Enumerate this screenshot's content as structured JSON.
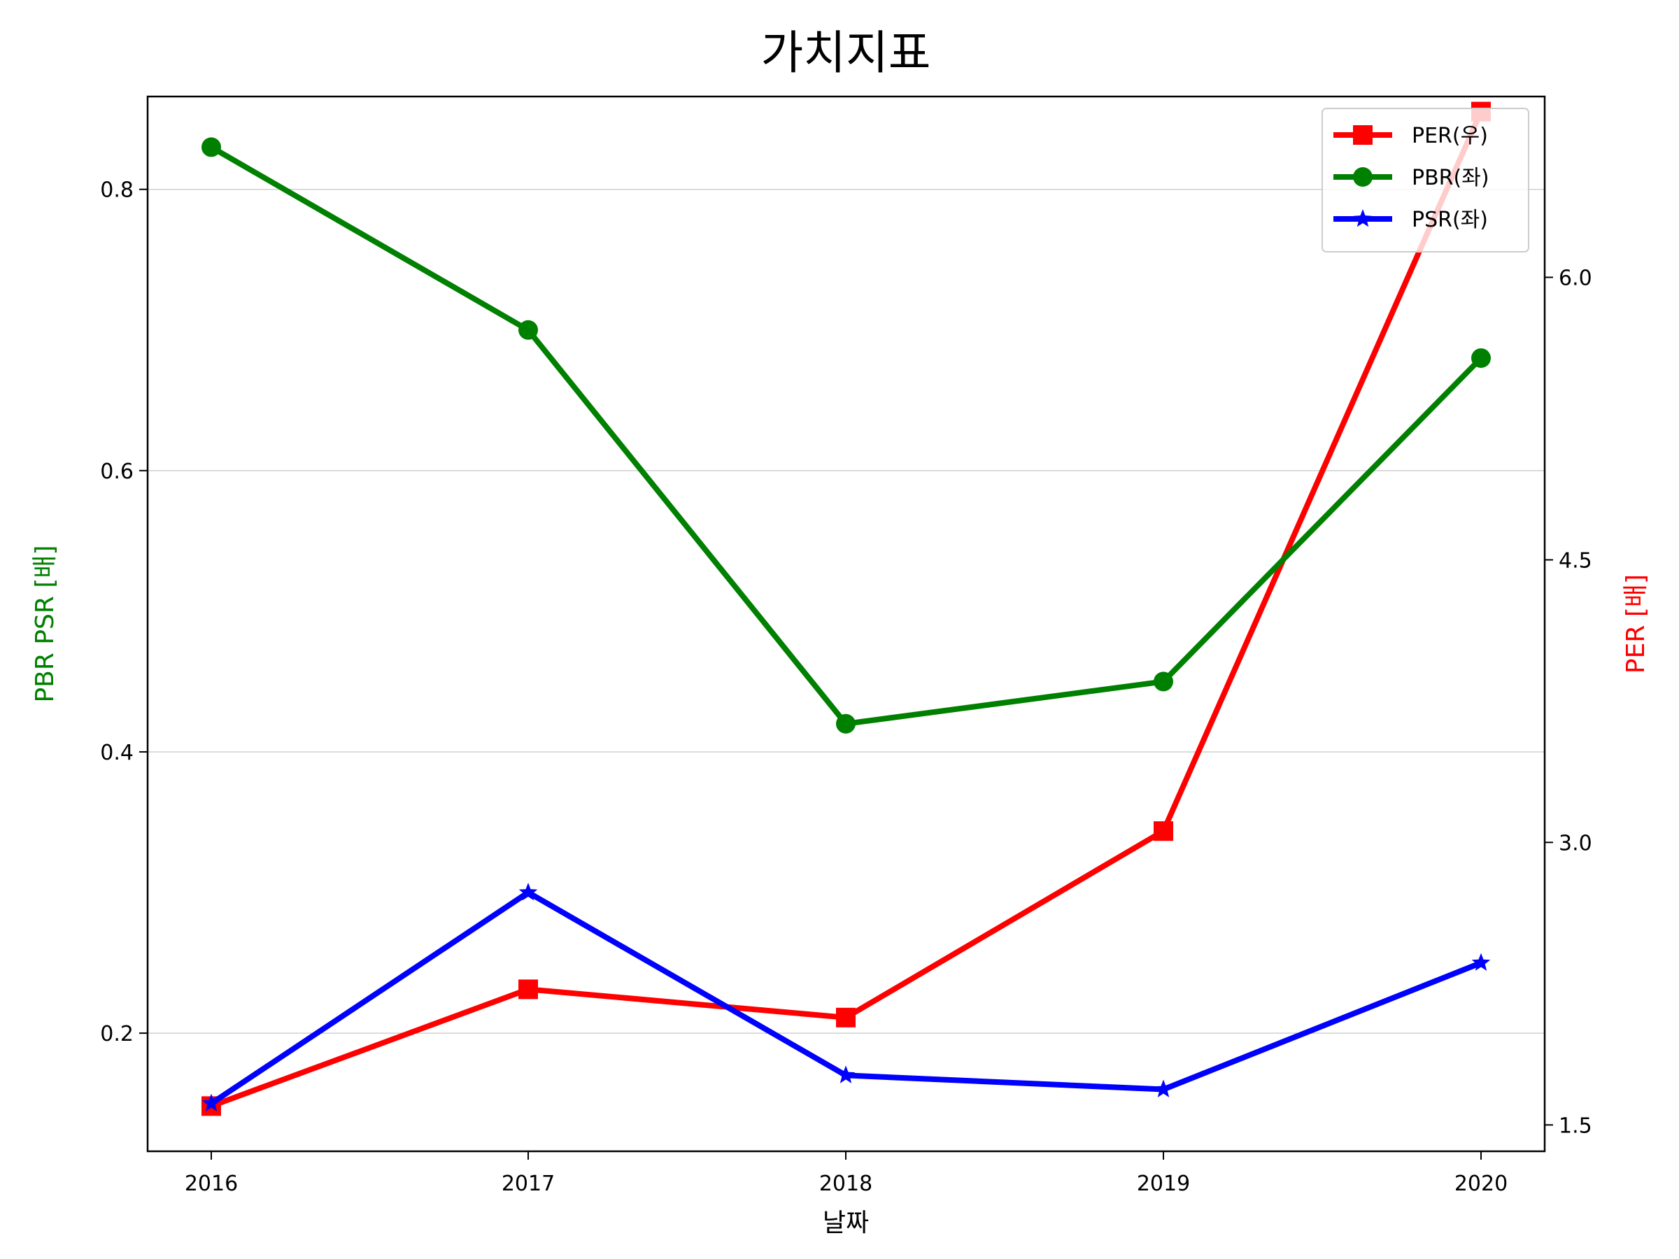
{
  "chart_data": {
    "type": "line",
    "title": "가치지표",
    "xlabel": "날짜",
    "ylabel_left": "PBR PSR [배]",
    "ylabel_right": "PER [배]",
    "x": [
      "2016",
      "2017",
      "2018",
      "2019",
      "2020"
    ],
    "left_axis": {
      "ylim": [
        0.116,
        0.866
      ],
      "ticks": [
        "0.2",
        "0.4",
        "0.6",
        "0.8"
      ]
    },
    "right_axis": {
      "ylim": [
        1.36,
        6.96
      ],
      "ticks": [
        "1.5",
        "3.0",
        "4.5",
        "6.0"
      ]
    },
    "grid": "horizontal",
    "legend_position": "top-right",
    "series": [
      {
        "name": "PER(우)",
        "axis": "right",
        "color": "#ff0000",
        "marker": "square",
        "values": [
          1.6,
          2.22,
          2.07,
          3.06,
          6.88
        ]
      },
      {
        "name": "PBR(좌)",
        "axis": "left",
        "color": "#008000",
        "marker": "circle",
        "values": [
          0.83,
          0.7,
          0.42,
          0.45,
          0.68
        ]
      },
      {
        "name": "PSR(좌)",
        "axis": "left",
        "color": "#0000ff",
        "marker": "star",
        "values": [
          0.15,
          0.3,
          0.17,
          0.16,
          0.25
        ]
      }
    ]
  }
}
